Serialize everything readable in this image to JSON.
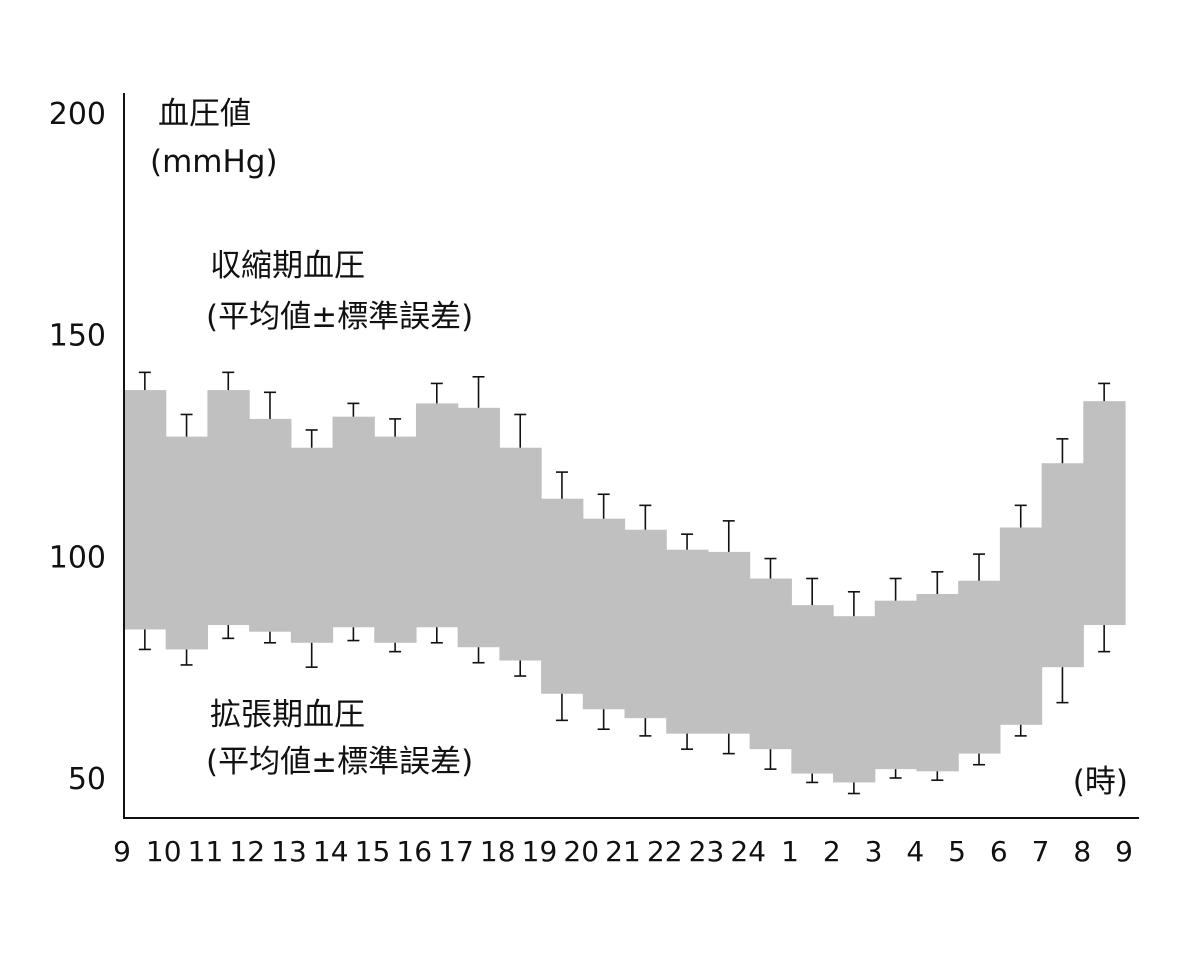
{
  "chart_data": {
    "type": "area",
    "ylabel_line1": "血圧値",
    "ylabel_line2": "(mmHg)",
    "xlabel": "(時)",
    "yticks": [
      "200",
      "150",
      "100",
      "50"
    ],
    "ylim": [
      41,
      200
    ],
    "x_tick_labels": [
      "9",
      "10",
      "11",
      "12",
      "13",
      "14",
      "15",
      "16",
      "17",
      "18",
      "19",
      "20",
      "21",
      "22",
      "23",
      "24",
      "1",
      "2",
      "3",
      "4",
      "5",
      "6",
      "7",
      "8",
      "9"
    ],
    "colors": {
      "band": "#c0c0c0",
      "axis": "#111111",
      "error_bar": "#111111"
    },
    "series": [
      {
        "name_line1": "収縮期血圧",
        "name_line2": "(平均値±標準誤差)",
        "mean": [
          137.5,
          127,
          137.5,
          131,
          124.5,
          131.5,
          127,
          134.5,
          133.5,
          124.5,
          113,
          108.5,
          106,
          101.5,
          101,
          95,
          89,
          86.5,
          90,
          91.5,
          94.5,
          106.5,
          121,
          135
        ],
        "sem": [
          4,
          5,
          4,
          6,
          4,
          3,
          4,
          4.5,
          7,
          7.5,
          6,
          5.5,
          5.5,
          3.5,
          7,
          4.5,
          6,
          5.5,
          5,
          5,
          6,
          5,
          5.5,
          4
        ]
      },
      {
        "name_line1": "拡張期血圧",
        "name_line2": "(平均値±標準誤差)",
        "mean": [
          83.5,
          79,
          84.5,
          83,
          80.5,
          84,
          80.5,
          84,
          79.5,
          76.5,
          69,
          65.5,
          63.5,
          60,
          60,
          56.5,
          51,
          49,
          52,
          51.5,
          55.5,
          62,
          75,
          84.5
        ],
        "sem": [
          4.5,
          3.5,
          3,
          2.5,
          5.5,
          3,
          2,
          3.5,
          3.5,
          3.5,
          6,
          4.5,
          4,
          3.5,
          4.5,
          4.5,
          2,
          2.5,
          2,
          2,
          2.5,
          2.5,
          8,
          6
        ]
      }
    ]
  }
}
